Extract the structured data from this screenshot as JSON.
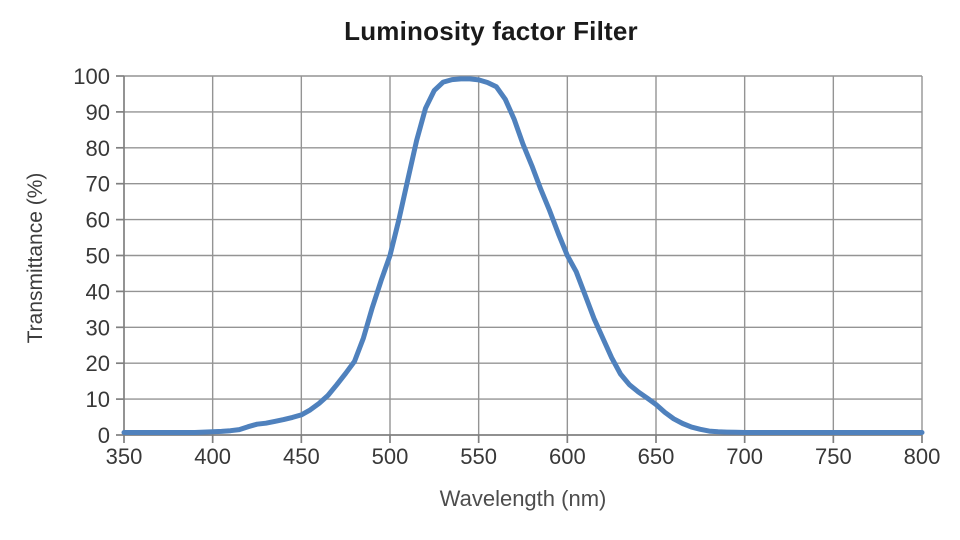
{
  "chart_data": {
    "type": "line",
    "title": "Luminosity factor Filter",
    "xlabel": "Wavelength (nm)",
    "ylabel": "Transmittance (%)",
    "xlim": [
      350,
      800
    ],
    "ylim": [
      0,
      100
    ],
    "x_ticks": [
      350,
      400,
      450,
      500,
      550,
      600,
      650,
      700,
      750,
      800
    ],
    "y_ticks": [
      0,
      10,
      20,
      30,
      40,
      50,
      60,
      70,
      80,
      90,
      100
    ],
    "grid": true,
    "legend": "none",
    "line_color": "#4F81BD",
    "grid_color": "#949494",
    "axis_color": "#808080",
    "series": [
      {
        "name": "transmittance",
        "x": [
          350,
          355,
          360,
          365,
          370,
          375,
          380,
          385,
          390,
          395,
          400,
          405,
          410,
          415,
          420,
          425,
          430,
          435,
          440,
          445,
          450,
          455,
          460,
          465,
          470,
          475,
          480,
          485,
          490,
          495,
          500,
          505,
          510,
          515,
          520,
          525,
          530,
          535,
          540,
          545,
          550,
          555,
          560,
          565,
          570,
          575,
          580,
          585,
          590,
          595,
          600,
          605,
          610,
          615,
          620,
          625,
          630,
          635,
          640,
          645,
          650,
          655,
          660,
          665,
          670,
          675,
          680,
          685,
          690,
          695,
          700,
          705,
          710,
          715,
          720,
          725,
          730,
          735,
          740,
          745,
          750,
          755,
          760,
          765,
          770,
          775,
          780,
          785,
          790,
          795,
          800
        ],
        "y": [
          0.7,
          0.7,
          0.7,
          0.7,
          0.7,
          0.7,
          0.7,
          0.7,
          0.7,
          0.8,
          0.9,
          1.0,
          1.2,
          1.5,
          2.3,
          3.0,
          3.3,
          3.8,
          4.3,
          4.9,
          5.6,
          7.0,
          8.8,
          11.0,
          14.0,
          17.2,
          20.5,
          27.0,
          35.5,
          43.0,
          50.0,
          60.0,
          71.0,
          82.0,
          91.0,
          96.0,
          98.3,
          99.0,
          99.2,
          99.2,
          98.9,
          98.2,
          97.0,
          93.5,
          88.0,
          81.0,
          75.0,
          68.5,
          62.5,
          56.0,
          50.0,
          45.5,
          39.0,
          32.5,
          27.0,
          21.5,
          17.0,
          14.0,
          12.0,
          10.3,
          8.5,
          6.3,
          4.5,
          3.2,
          2.2,
          1.6,
          1.1,
          0.9,
          0.8,
          0.75,
          0.7,
          0.7,
          0.7,
          0.7,
          0.7,
          0.7,
          0.7,
          0.7,
          0.7,
          0.7,
          0.7,
          0.7,
          0.7,
          0.7,
          0.7,
          0.7,
          0.7,
          0.7,
          0.7,
          0.7,
          0.7
        ]
      }
    ]
  }
}
